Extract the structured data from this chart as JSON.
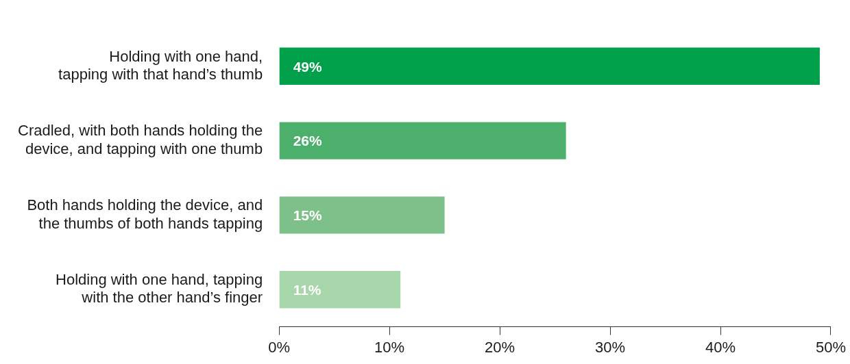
{
  "chart_data": {
    "type": "bar",
    "orientation": "horizontal",
    "categories": [
      "Holding with one hand, tapping with that hand’s thumb",
      "Cradled, with both hands holding the device, and tapping with one thumb",
      "Both hands holding the device, and the thumbs of both hands tapping",
      "Holding with one hand, tapping with the other hand’s finger"
    ],
    "values": [
      49,
      26,
      15,
      11
    ],
    "colors": [
      "#00a04a",
      "#4caf6c",
      "#7dc089",
      "#a8d6ab"
    ],
    "value_labels": [
      "49%",
      "26%",
      "15%",
      "11%"
    ],
    "xlim": [
      0,
      50
    ],
    "xticks": [
      {
        "value": 0,
        "label": "0%"
      },
      {
        "value": 10,
        "label": "10%"
      },
      {
        "value": 20,
        "label": "20%"
      },
      {
        "value": 30,
        "label": "30%"
      },
      {
        "value": 40,
        "label": "40%"
      },
      {
        "value": 50,
        "label": "50%"
      }
    ],
    "grid": false,
    "legend": false
  }
}
